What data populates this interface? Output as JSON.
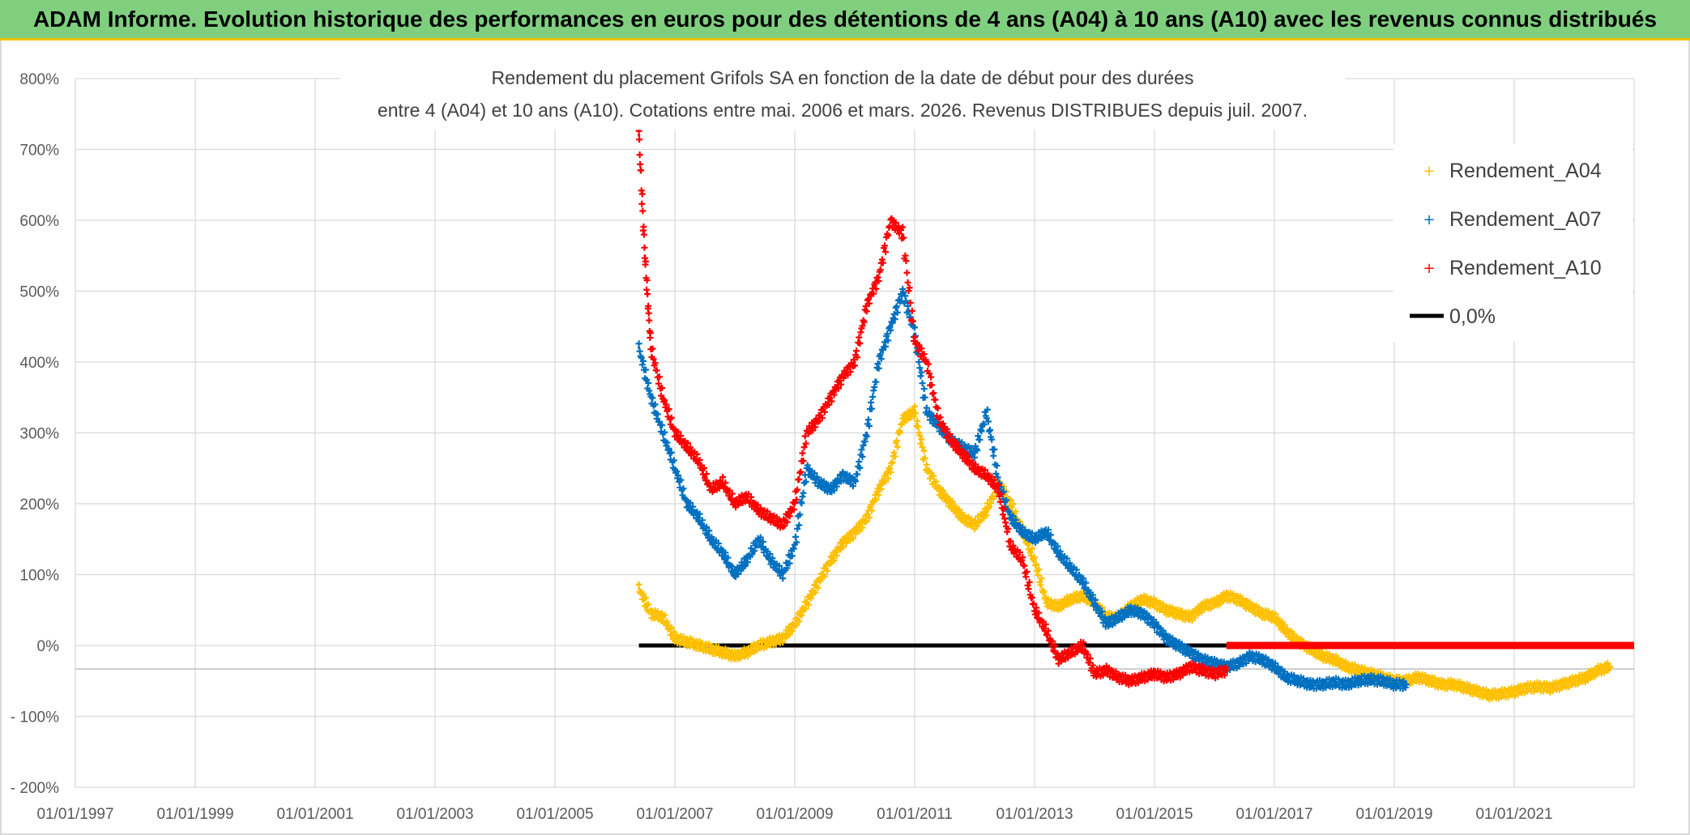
{
  "banner_title": "ADAM Informe. Evolution historique des performances en euros pour des détentions de 4 ans (A04) à 10 ans (A10) avec les revenus connus distribués",
  "chart_data": {
    "type": "scatter",
    "title_line1": "Rendement du placement Grifols SA en fonction de la date de début pour des durées",
    "title_line2": "entre 4 (A04) et 10 ans (A10). Cotations entre mai. 2006 et mars. 2026. Revenus DISTRIBUES depuis juil. 2007.",
    "xlabel": "",
    "ylabel": "",
    "xlim": [
      1997.0,
      2023.0
    ],
    "ylim": [
      -200,
      800
    ],
    "y_ticks": [
      -200,
      -100,
      0,
      100,
      200,
      300,
      400,
      500,
      600,
      700,
      800
    ],
    "y_tick_labels": [
      "- 200%",
      "- 100%",
      "0%",
      "100%",
      "200%",
      "300%",
      "400%",
      "500%",
      "600%",
      "700%",
      "800%"
    ],
    "x_ticks": [
      1997,
      1999,
      2001,
      2003,
      2005,
      2007,
      2009,
      2011,
      2013,
      2015,
      2017,
      2019,
      2021
    ],
    "x_tick_labels": [
      "01/01/1997",
      "01/01/1999",
      "01/01/2001",
      "01/01/2003",
      "01/01/2005",
      "01/01/2007",
      "01/01/2009",
      "01/01/2011",
      "01/01/2013",
      "01/01/2015",
      "01/01/2017",
      "01/01/2019",
      "01/01/2021"
    ],
    "grid": true,
    "legend_position": "top-right",
    "series": [
      {
        "name": "Rendement_A04",
        "color": "#ffc000",
        "marker": "plus",
        "x": [
          2006.4,
          2006.6,
          2006.8,
          2007.0,
          2007.2,
          2007.4,
          2007.6,
          2007.8,
          2008.0,
          2008.2,
          2008.4,
          2008.6,
          2008.8,
          2009.0,
          2009.2,
          2009.4,
          2009.6,
          2009.8,
          2010.0,
          2010.2,
          2010.4,
          2010.6,
          2010.8,
          2011.0,
          2011.2,
          2011.4,
          2011.6,
          2011.8,
          2012.0,
          2012.2,
          2012.4,
          2012.6,
          2012.8,
          2013.0,
          2013.2,
          2013.4,
          2013.6,
          2013.8,
          2014.0,
          2014.2,
          2014.4,
          2014.6,
          2014.8,
          2015.0,
          2015.2,
          2015.4,
          2015.6,
          2015.8,
          2016.0,
          2016.2,
          2016.4,
          2016.6,
          2016.8,
          2017.0,
          2017.2,
          2017.4,
          2017.6,
          2017.8,
          2018.0,
          2018.2,
          2018.4,
          2018.6,
          2018.8,
          2019.0,
          2019.2,
          2019.4,
          2019.6,
          2019.8,
          2020.0,
          2020.2,
          2020.4,
          2020.6,
          2020.8,
          2021.0,
          2021.2,
          2021.4,
          2021.6,
          2021.8,
          2022.0,
          2022.2,
          2022.4,
          2022.6
        ],
        "y": [
          80,
          45,
          40,
          10,
          5,
          0,
          -5,
          -10,
          -15,
          -10,
          0,
          5,
          10,
          30,
          60,
          90,
          120,
          145,
          160,
          180,
          220,
          250,
          320,
          330,
          250,
          220,
          200,
          180,
          170,
          190,
          230,
          200,
          160,
          120,
          60,
          55,
          65,
          70,
          60,
          40,
          40,
          55,
          65,
          60,
          50,
          45,
          40,
          55,
          60,
          70,
          65,
          55,
          45,
          40,
          20,
          5,
          -5,
          -15,
          -20,
          -30,
          -35,
          -40,
          -45,
          -50,
          -50,
          -45,
          -50,
          -55,
          -55,
          -60,
          -65,
          -70,
          -68,
          -65,
          -60,
          -58,
          -60,
          -55,
          -50,
          -45,
          -35,
          -30
        ]
      },
      {
        "name": "Rendement_A07",
        "color": "#0070c0",
        "marker": "plus",
        "x": [
          2006.4,
          2006.6,
          2006.8,
          2007.0,
          2007.2,
          2007.4,
          2007.6,
          2007.8,
          2008.0,
          2008.2,
          2008.4,
          2008.6,
          2008.8,
          2009.0,
          2009.2,
          2009.4,
          2009.6,
          2009.8,
          2010.0,
          2010.2,
          2010.4,
          2010.6,
          2010.8,
          2011.0,
          2011.2,
          2011.4,
          2011.6,
          2011.8,
          2012.0,
          2012.2,
          2012.4,
          2012.6,
          2012.8,
          2013.0,
          2013.2,
          2013.4,
          2013.6,
          2013.8,
          2014.0,
          2014.2,
          2014.4,
          2014.6,
          2014.8,
          2015.0,
          2015.2,
          2015.4,
          2015.6,
          2015.8,
          2016.0,
          2016.2,
          2016.4,
          2016.6,
          2016.8,
          2017.0,
          2017.2,
          2017.4,
          2017.6,
          2017.8,
          2018.0,
          2018.2,
          2018.4,
          2018.6,
          2018.8,
          2019.0,
          2019.2
        ],
        "y": [
          420,
          350,
          300,
          250,
          200,
          180,
          150,
          130,
          100,
          120,
          150,
          120,
          100,
          140,
          250,
          230,
          220,
          240,
          230,
          300,
          400,
          450,
          500,
          440,
          330,
          310,
          290,
          280,
          270,
          330,
          230,
          180,
          160,
          150,
          160,
          130,
          110,
          90,
          60,
          30,
          40,
          50,
          45,
          30,
          10,
          0,
          -10,
          -20,
          -25,
          -30,
          -25,
          -15,
          -20,
          -30,
          -45,
          -50,
          -55,
          -55,
          -52,
          -55,
          -50,
          -48,
          -50,
          -55,
          -55
        ]
      },
      {
        "name": "Rendement_A10",
        "color": "#ff0000",
        "marker": "plus",
        "x": [
          2006.4,
          2006.5,
          2006.6,
          2006.8,
          2007.0,
          2007.2,
          2007.4,
          2007.6,
          2007.8,
          2008.0,
          2008.2,
          2008.4,
          2008.6,
          2008.8,
          2009.0,
          2009.2,
          2009.4,
          2009.6,
          2009.8,
          2010.0,
          2010.2,
          2010.4,
          2010.6,
          2010.8,
          2011.0,
          2011.2,
          2011.4,
          2011.6,
          2011.8,
          2012.0,
          2012.2,
          2012.4,
          2012.6,
          2012.8,
          2013.0,
          2013.2,
          2013.4,
          2013.6,
          2013.8,
          2014.0,
          2014.2,
          2014.4,
          2014.6,
          2014.8,
          2015.0,
          2015.2,
          2015.4,
          2015.6,
          2015.8,
          2016.0,
          2016.2
        ],
        "y": [
          720,
          550,
          420,
          350,
          300,
          280,
          260,
          220,
          230,
          200,
          210,
          190,
          180,
          170,
          200,
          300,
          320,
          350,
          380,
          400,
          480,
          520,
          600,
          580,
          430,
          400,
          320,
          290,
          270,
          250,
          240,
          220,
          140,
          120,
          50,
          20,
          -20,
          -10,
          0,
          -40,
          -35,
          -45,
          -50,
          -45,
          -40,
          -45,
          -40,
          -30,
          -35,
          -40,
          -35
        ]
      }
    ],
    "zero_line": {
      "name": "0,0%",
      "color": "#000000",
      "x_start": 2006.4,
      "x_end": 2016.2,
      "y": 0
    },
    "a10_flat_segment": {
      "x_start": 2016.2,
      "x_end": 2023.0,
      "y": 0
    }
  }
}
